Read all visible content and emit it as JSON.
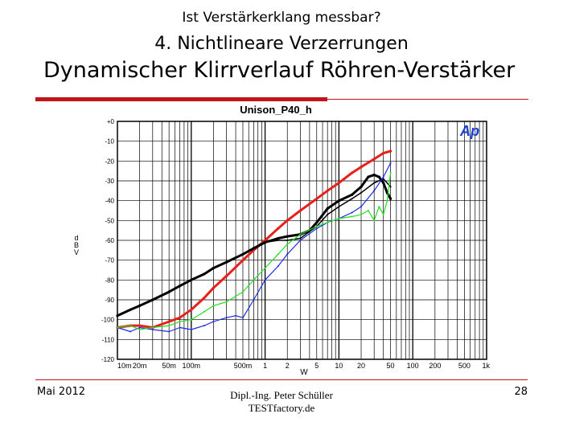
{
  "slide": {
    "supertitle": "Ist Verstärkerklang messbar?",
    "subtitle": "4. Nichtlineare Verzerrungen",
    "title": "Dynamischer Klirrverlauf Röhren-Verstärker"
  },
  "footer": {
    "date": "Mai 2012",
    "author_line1": "Dipl.-Ing. Peter Schüller",
    "author_line2": "TESTfactory.de",
    "page": "28"
  },
  "chart_logo": "Ap",
  "colors": {
    "accent": "#c0151b",
    "plot_red": "#e8201a",
    "plot_black": "#000000",
    "plot_blue": "#1a2be8",
    "plot_green": "#22dd22"
  },
  "chart_data": {
    "type": "line",
    "title": "Unison_P40_h",
    "xlabel": "W",
    "ylabel": "dBV",
    "xscale": "log",
    "xlim": [
      0.01,
      1000
    ],
    "ylim": [
      -120,
      0
    ],
    "grid": true,
    "x_ticks": [
      {
        "v": 0.01,
        "label": "10m"
      },
      {
        "v": 0.02,
        "label": "20m"
      },
      {
        "v": 0.05,
        "label": "50m"
      },
      {
        "v": 0.1,
        "label": "100m"
      },
      {
        "v": 0.5,
        "label": "500m"
      },
      {
        "v": 1,
        "label": "1"
      },
      {
        "v": 2,
        "label": "2"
      },
      {
        "v": 5,
        "label": "5"
      },
      {
        "v": 10,
        "label": "10"
      },
      {
        "v": 20,
        "label": "20"
      },
      {
        "v": 50,
        "label": "50"
      },
      {
        "v": 100,
        "label": "100"
      },
      {
        "v": 200,
        "label": "200"
      },
      {
        "v": 500,
        "label": "500"
      },
      {
        "v": 1000,
        "label": "1k"
      }
    ],
    "y_ticks": [
      {
        "v": 0,
        "label": "+0"
      },
      {
        "v": -10,
        "label": "-10"
      },
      {
        "v": -20,
        "label": "-20"
      },
      {
        "v": -30,
        "label": "-30"
      },
      {
        "v": -40,
        "label": "-40"
      },
      {
        "v": -50,
        "label": "-50"
      },
      {
        "v": -60,
        "label": "-60"
      },
      {
        "v": -70,
        "label": "-70"
      },
      {
        "v": -80,
        "label": "-80"
      },
      {
        "v": -90,
        "label": "-90"
      },
      {
        "v": -100,
        "label": "-100"
      },
      {
        "v": -110,
        "label": "-110"
      },
      {
        "v": -120,
        "label": "-120"
      }
    ],
    "series": [
      {
        "color": "#e8201a",
        "width": 3,
        "x": [
          0.01,
          0.015,
          0.02,
          0.03,
          0.05,
          0.07,
          0.1,
          0.15,
          0.2,
          0.3,
          0.5,
          0.7,
          1,
          1.5,
          2,
          3,
          5,
          7,
          10,
          15,
          20,
          30,
          40,
          50
        ],
        "y": [
          -104,
          -103,
          -103,
          -104,
          -101,
          -99,
          -95,
          -89,
          -84,
          -78,
          -70,
          -65,
          -60,
          -54,
          -50,
          -45,
          -39,
          -35,
          -31,
          -26,
          -23,
          -19,
          -16,
          -15
        ]
      },
      {
        "color": "#000000",
        "width": 3,
        "x": [
          0.01,
          0.015,
          0.02,
          0.03,
          0.05,
          0.07,
          0.1,
          0.15,
          0.2,
          0.3,
          0.5,
          0.7,
          1,
          1.5,
          2,
          3,
          4,
          5,
          7,
          10,
          15,
          20,
          25,
          30,
          35,
          40,
          45,
          50
        ],
        "y": [
          -98,
          -95,
          -93,
          -90,
          -86,
          -83,
          -80,
          -77,
          -74,
          -71,
          -67,
          -64,
          -61,
          -59,
          -58,
          -57,
          -55,
          -51,
          -44,
          -40,
          -37,
          -33,
          -28,
          -27,
          -28,
          -31,
          -36,
          -39
        ]
      },
      {
        "color": "#000000",
        "width": 1.5,
        "x": [
          1,
          1.5,
          2,
          3,
          5,
          7,
          10,
          15,
          20,
          30,
          40,
          50
        ],
        "y": [
          -61,
          -60,
          -60,
          -59,
          -53,
          -47,
          -43,
          -39,
          -36,
          -31,
          -29,
          -33
        ]
      },
      {
        "color": "#1a2be8",
        "width": 1.2,
        "x": [
          0.01,
          0.015,
          0.02,
          0.03,
          0.05,
          0.07,
          0.1,
          0.15,
          0.2,
          0.3,
          0.4,
          0.5,
          0.7,
          1,
          1.5,
          2,
          3,
          5,
          7,
          10,
          15,
          20,
          30,
          40,
          50
        ],
        "y": [
          -104,
          -106,
          -104,
          -105,
          -106,
          -104,
          -105,
          -103,
          -101,
          -99,
          -98,
          -99,
          -90,
          -80,
          -73,
          -67,
          -60,
          -54,
          -51,
          -49,
          -46,
          -43,
          -35,
          -28,
          -21
        ]
      },
      {
        "color": "#22dd22",
        "width": 1.2,
        "x": [
          0.01,
          0.015,
          0.02,
          0.03,
          0.05,
          0.07,
          0.1,
          0.15,
          0.2,
          0.3,
          0.5,
          0.7,
          1,
          1.5,
          2,
          3,
          5,
          7,
          10,
          15,
          20,
          25,
          30,
          35,
          40,
          45,
          50
        ],
        "y": [
          -104,
          -103,
          -105,
          -104,
          -103,
          -101,
          -100,
          -96,
          -93,
          -91,
          -86,
          -80,
          -74,
          -67,
          -62,
          -57,
          -53,
          -51,
          -49,
          -48,
          -47,
          -45,
          -50,
          -43,
          -47,
          -40,
          -26
        ]
      }
    ]
  }
}
